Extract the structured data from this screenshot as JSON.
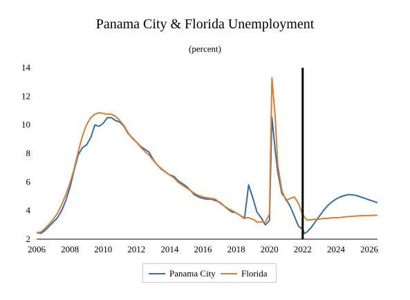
{
  "chart_data": {
    "type": "line",
    "title": "Panama City & Florida Unemployment",
    "subtitle": "(percent)",
    "xlabel": "",
    "ylabel": "",
    "xlim": [
      2006,
      2026.5
    ],
    "ylim": [
      2,
      14
    ],
    "x_ticks": [
      2006,
      2008,
      2010,
      2012,
      2014,
      2016,
      2018,
      2020,
      2022,
      2024,
      2026
    ],
    "y_ticks": [
      2,
      4,
      6,
      8,
      10,
      12,
      14
    ],
    "grid": false,
    "legend_position": "bottom",
    "vertical_line_x": 2022,
    "series": [
      {
        "name": "Panama City",
        "color": "#2e6db0",
        "points": [
          [
            2006.0,
            2.45
          ],
          [
            2006.25,
            2.4
          ],
          [
            2006.5,
            2.6
          ],
          [
            2006.75,
            2.9
          ],
          [
            2007.0,
            3.2
          ],
          [
            2007.25,
            3.5
          ],
          [
            2007.5,
            4.0
          ],
          [
            2007.75,
            4.7
          ],
          [
            2008.0,
            5.6
          ],
          [
            2008.25,
            6.8
          ],
          [
            2008.5,
            7.9
          ],
          [
            2008.75,
            8.4
          ],
          [
            2009.0,
            8.6
          ],
          [
            2009.25,
            9.1
          ],
          [
            2009.5,
            10.0
          ],
          [
            2009.75,
            9.9
          ],
          [
            2010.0,
            10.1
          ],
          [
            2010.25,
            10.5
          ],
          [
            2010.5,
            10.5
          ],
          [
            2010.75,
            10.3
          ],
          [
            2011.0,
            10.2
          ],
          [
            2011.25,
            9.9
          ],
          [
            2011.5,
            9.4
          ],
          [
            2011.75,
            9.1
          ],
          [
            2012.0,
            8.8
          ],
          [
            2012.25,
            8.5
          ],
          [
            2012.5,
            8.3
          ],
          [
            2012.75,
            8.1
          ],
          [
            2013.0,
            7.6
          ],
          [
            2013.25,
            7.2
          ],
          [
            2013.5,
            6.9
          ],
          [
            2013.75,
            6.7
          ],
          [
            2014.0,
            6.5
          ],
          [
            2014.25,
            6.4
          ],
          [
            2014.5,
            6.1
          ],
          [
            2014.75,
            5.9
          ],
          [
            2015.0,
            5.7
          ],
          [
            2015.25,
            5.4
          ],
          [
            2015.5,
            5.1
          ],
          [
            2015.75,
            4.95
          ],
          [
            2016.0,
            4.85
          ],
          [
            2016.25,
            4.8
          ],
          [
            2016.5,
            4.8
          ],
          [
            2016.75,
            4.7
          ],
          [
            2017.0,
            4.6
          ],
          [
            2017.25,
            4.35
          ],
          [
            2017.5,
            4.1
          ],
          [
            2017.75,
            3.9
          ],
          [
            2018.0,
            3.85
          ],
          [
            2018.25,
            3.65
          ],
          [
            2018.5,
            3.45
          ],
          [
            2018.75,
            5.8
          ],
          [
            2019.0,
            4.9
          ],
          [
            2019.25,
            3.9
          ],
          [
            2019.5,
            3.5
          ],
          [
            2019.75,
            3.0
          ],
          [
            2020.0,
            3.3
          ],
          [
            2020.15,
            10.55
          ],
          [
            2020.35,
            8.2
          ],
          [
            2020.5,
            6.7
          ],
          [
            2020.75,
            5.2
          ],
          [
            2021.0,
            4.8
          ],
          [
            2021.25,
            4.3
          ],
          [
            2021.5,
            3.6
          ],
          [
            2021.75,
            2.9
          ],
          [
            2022.0,
            2.7
          ],
          [
            2022.1,
            2.4
          ],
          [
            2022.25,
            2.5
          ],
          [
            2022.5,
            2.8
          ],
          [
            2022.75,
            3.2
          ],
          [
            2023.0,
            3.6
          ],
          [
            2023.25,
            4.0
          ],
          [
            2023.5,
            4.35
          ],
          [
            2023.75,
            4.6
          ],
          [
            2024.0,
            4.8
          ],
          [
            2024.25,
            4.95
          ],
          [
            2024.5,
            5.05
          ],
          [
            2024.75,
            5.12
          ],
          [
            2025.0,
            5.1
          ],
          [
            2025.25,
            5.05
          ],
          [
            2025.5,
            4.95
          ],
          [
            2025.75,
            4.85
          ],
          [
            2026.0,
            4.75
          ],
          [
            2026.25,
            4.65
          ],
          [
            2026.5,
            4.55
          ]
        ]
      },
      {
        "name": "Florida",
        "color": "#e07b2a",
        "points": [
          [
            2006.0,
            2.45
          ],
          [
            2006.25,
            2.5
          ],
          [
            2006.5,
            2.75
          ],
          [
            2006.75,
            3.05
          ],
          [
            2007.0,
            3.4
          ],
          [
            2007.25,
            3.8
          ],
          [
            2007.5,
            4.4
          ],
          [
            2007.75,
            5.1
          ],
          [
            2008.0,
            5.9
          ],
          [
            2008.25,
            6.9
          ],
          [
            2008.5,
            8.1
          ],
          [
            2008.75,
            9.2
          ],
          [
            2009.0,
            10.0
          ],
          [
            2009.25,
            10.5
          ],
          [
            2009.5,
            10.75
          ],
          [
            2009.75,
            10.85
          ],
          [
            2010.0,
            10.8
          ],
          [
            2010.25,
            10.75
          ],
          [
            2010.5,
            10.75
          ],
          [
            2010.75,
            10.6
          ],
          [
            2011.0,
            10.3
          ],
          [
            2011.25,
            9.95
          ],
          [
            2011.5,
            9.45
          ],
          [
            2011.75,
            9.05
          ],
          [
            2012.0,
            8.8
          ],
          [
            2012.25,
            8.45
          ],
          [
            2012.5,
            8.15
          ],
          [
            2012.75,
            7.9
          ],
          [
            2013.0,
            7.55
          ],
          [
            2013.25,
            7.2
          ],
          [
            2013.5,
            6.95
          ],
          [
            2013.75,
            6.7
          ],
          [
            2014.0,
            6.5
          ],
          [
            2014.25,
            6.3
          ],
          [
            2014.5,
            6.0
          ],
          [
            2014.75,
            5.8
          ],
          [
            2015.0,
            5.6
          ],
          [
            2015.25,
            5.4
          ],
          [
            2015.5,
            5.2
          ],
          [
            2015.75,
            5.05
          ],
          [
            2016.0,
            4.95
          ],
          [
            2016.25,
            4.9
          ],
          [
            2016.5,
            4.85
          ],
          [
            2016.75,
            4.8
          ],
          [
            2017.0,
            4.55
          ],
          [
            2017.25,
            4.35
          ],
          [
            2017.5,
            4.15
          ],
          [
            2017.75,
            4.0
          ],
          [
            2018.0,
            3.85
          ],
          [
            2018.25,
            3.65
          ],
          [
            2018.5,
            3.5
          ],
          [
            2018.75,
            3.5
          ],
          [
            2019.0,
            3.4
          ],
          [
            2019.25,
            3.2
          ],
          [
            2019.5,
            3.2
          ],
          [
            2019.75,
            3.2
          ],
          [
            2020.0,
            3.75
          ],
          [
            2020.15,
            13.3
          ],
          [
            2020.35,
            10.5
          ],
          [
            2020.5,
            7.2
          ],
          [
            2020.75,
            5.4
          ],
          [
            2021.0,
            4.7
          ],
          [
            2021.25,
            4.85
          ],
          [
            2021.5,
            4.95
          ],
          [
            2021.75,
            4.5
          ],
          [
            2022.0,
            3.7
          ],
          [
            2022.25,
            3.35
          ],
          [
            2022.5,
            3.35
          ],
          [
            2022.75,
            3.4
          ],
          [
            2023.0,
            3.4
          ],
          [
            2023.25,
            3.45
          ],
          [
            2023.5,
            3.45
          ],
          [
            2023.75,
            3.5
          ],
          [
            2024.0,
            3.5
          ],
          [
            2024.25,
            3.52
          ],
          [
            2024.5,
            3.55
          ],
          [
            2024.75,
            3.58
          ],
          [
            2025.0,
            3.6
          ],
          [
            2025.25,
            3.62
          ],
          [
            2025.5,
            3.64
          ],
          [
            2025.75,
            3.65
          ],
          [
            2026.0,
            3.66
          ],
          [
            2026.25,
            3.67
          ],
          [
            2026.5,
            3.68
          ]
        ]
      }
    ]
  }
}
